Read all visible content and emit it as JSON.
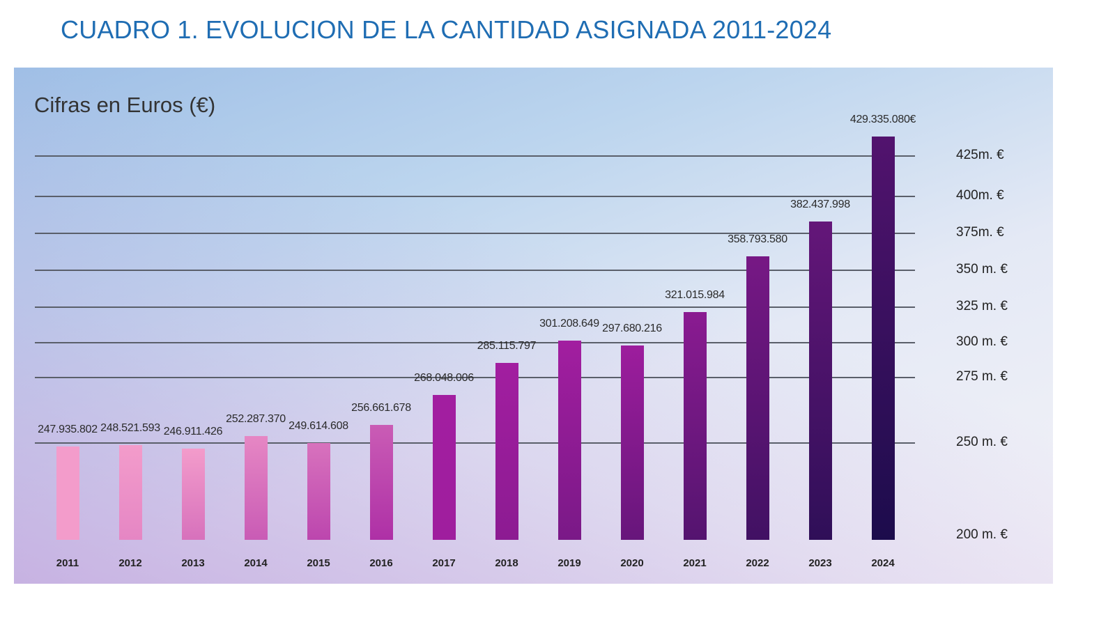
{
  "title": "CUADRO 1. EVOLUCION DE LA CANTIDAD ASIGNADA 2011-2024",
  "chart_data": {
    "type": "bar",
    "title": "CUADRO 1. EVOLUCION DE LA CANTIDAD ASIGNADA 2011-2024",
    "ylabel": "Cifras en Euros (€)",
    "xlabel": "",
    "categories": [
      "2011",
      "2012",
      "2013",
      "2014",
      "2015",
      "2016",
      "2017",
      "2018",
      "2019",
      "2020",
      "2021",
      "2022",
      "2023",
      "2024"
    ],
    "values": [
      247935802,
      248521593,
      246911426,
      252287370,
      249614608,
      256661678,
      268048006,
      285115797,
      301208649,
      297680216,
      321015984,
      358793580,
      382437998,
      429335080
    ],
    "data_labels": [
      "247.935.802",
      "248.521.593",
      "246.911.426",
      "252.287.370",
      "249.614.608",
      "256.661.678",
      "268.048.006",
      "285.115.797",
      "301.208.649",
      "297.680.216",
      "321.015.984",
      "358.793.580",
      "382.437.998",
      "429.335.080€"
    ],
    "y_ticks": [
      {
        "value": 425000000,
        "label": "425m. €"
      },
      {
        "value": 400000000,
        "label": "400m. €"
      },
      {
        "value": 375000000,
        "label": "375m. €"
      },
      {
        "value": 350000000,
        "label": "350 m. €"
      },
      {
        "value": 325000000,
        "label": "325 m. €"
      },
      {
        "value": 300000000,
        "label": "300 m. €"
      },
      {
        "value": 275000000,
        "label": "275 m. €"
      },
      {
        "value": 250000000,
        "label": "250 m. €"
      },
      {
        "value": 200000000,
        "label": "200 m. €"
      }
    ],
    "y_axis_position": "right",
    "scale": "non-uniform",
    "grid": true,
    "legend": "none",
    "colors": {
      "first_bar": "#f39ccb",
      "mid_bar": "#a21ea0",
      "last_bar": "#1c0c4c",
      "title": "#1f6db3"
    }
  }
}
